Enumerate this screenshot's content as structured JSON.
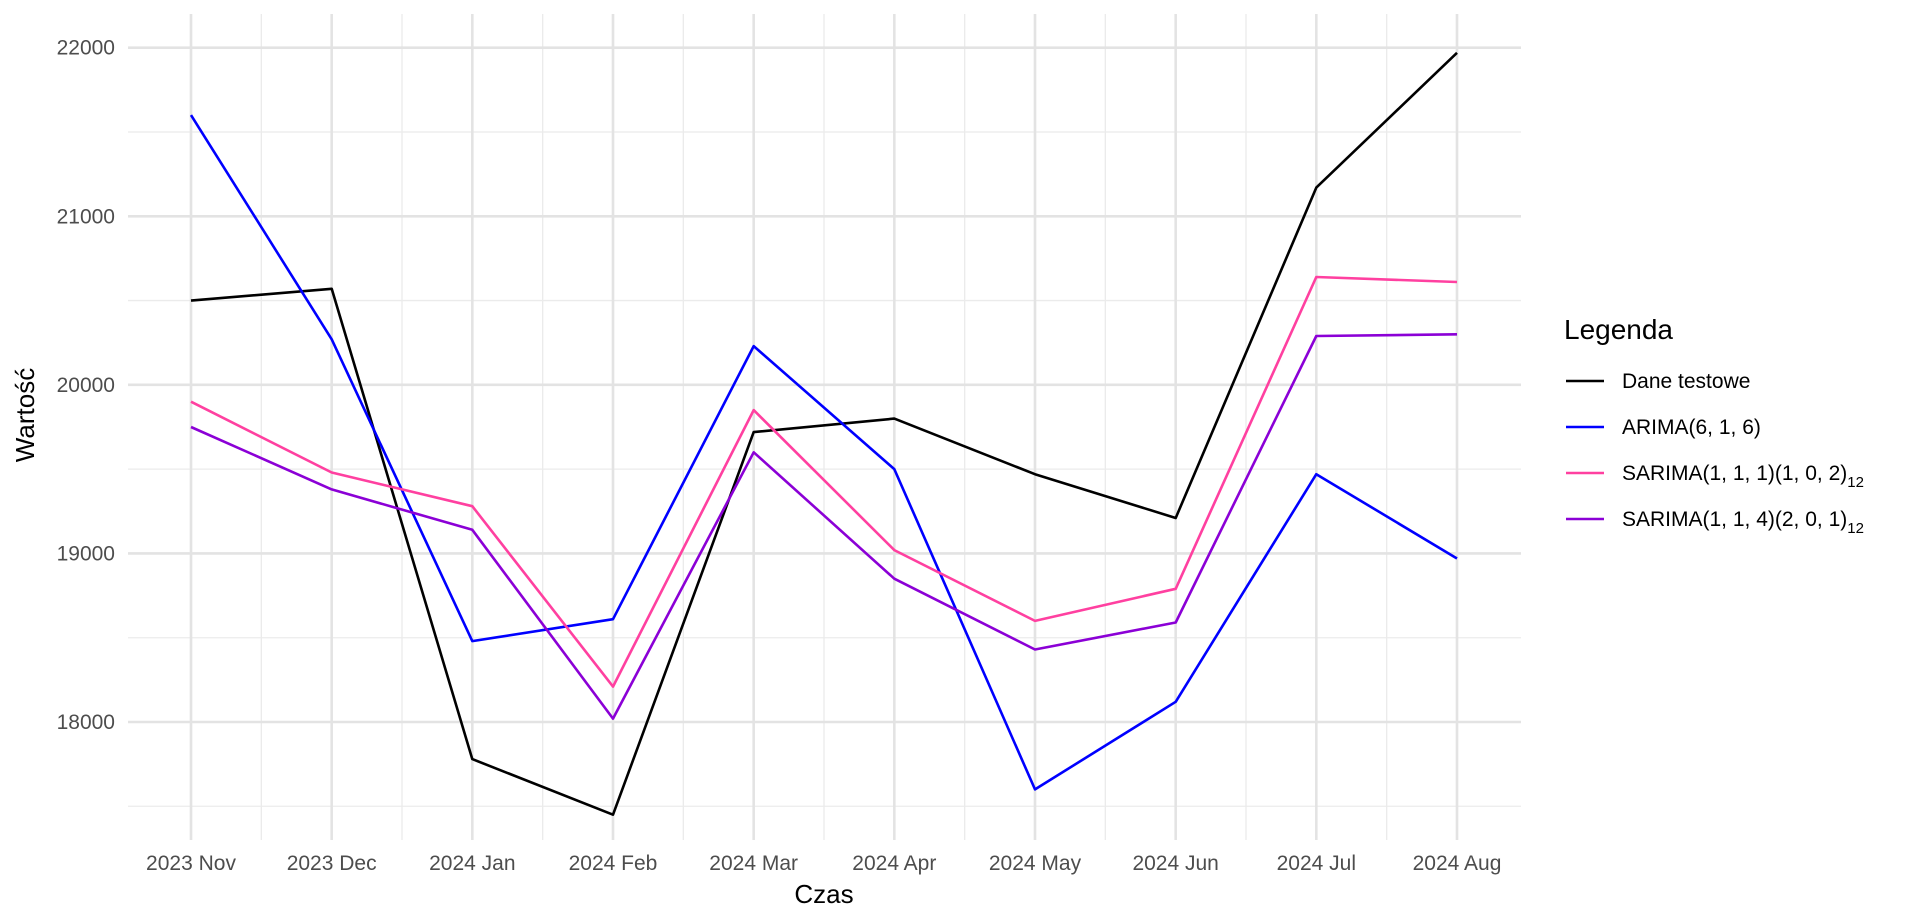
{
  "chart_data": {
    "type": "line",
    "title": "",
    "xlabel": "Czas",
    "ylabel": "Wartość",
    "categories": [
      "2023 Nov",
      "2023 Dec",
      "2024 Jan",
      "2024 Feb",
      "2024 Mar",
      "2024 Apr",
      "2024 May",
      "2024 Jun",
      "2024 Jul",
      "2024 Aug"
    ],
    "ylim": [
      17300,
      22200
    ],
    "yticks": [
      18000,
      19000,
      20000,
      21000,
      22000
    ],
    "grid": true,
    "legend_position": "right",
    "legend_title": "Legenda",
    "series": [
      {
        "name": "Dane testowe",
        "color": "#000000",
        "values": [
          20500,
          20570,
          17780,
          17450,
          19720,
          19800,
          19470,
          19210,
          21170,
          21970
        ]
      },
      {
        "name": "ARIMA(6, 1, 6)",
        "color": "#0000ff",
        "values": [
          21600,
          20270,
          18480,
          18610,
          20230,
          19500,
          17600,
          18120,
          19470,
          18970
        ]
      },
      {
        "name": "SARIMA(1, 1, 1)(1, 0, 2)",
        "subscript": "12",
        "color": "#ff40a0",
        "values": [
          19900,
          19480,
          19280,
          18210,
          19850,
          19020,
          18600,
          18790,
          20640,
          20610
        ]
      },
      {
        "name": "SARIMA(1, 1, 4)(2, 0, 1)",
        "subscript": "12",
        "color": "#8b00d6",
        "values": [
          19750,
          19380,
          19140,
          18020,
          19600,
          18850,
          18430,
          18590,
          20290,
          20300
        ]
      }
    ]
  }
}
